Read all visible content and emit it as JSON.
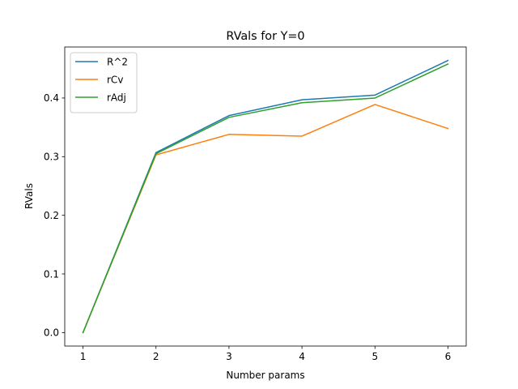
{
  "chart_data": {
    "type": "line",
    "title": "RVals for Y=0",
    "xlabel": "Number params",
    "ylabel": "RVals",
    "x": [
      1,
      2,
      3,
      4,
      5,
      6
    ],
    "xlim": [
      0.75,
      6.25
    ],
    "ylim": [
      -0.023,
      0.487
    ],
    "xticks": [
      "1",
      "2",
      "3",
      "4",
      "5",
      "6"
    ],
    "yticks": [
      "0.0",
      "0.1",
      "0.2",
      "0.3",
      "0.4"
    ],
    "grid": false,
    "legend_position": "upper-left",
    "series": [
      {
        "name": "R^2",
        "color": "#1f77b4",
        "values": [
          0.0,
          0.307,
          0.37,
          0.397,
          0.405,
          0.464
        ]
      },
      {
        "name": "rCv",
        "color": "#ff7f0e",
        "values": [
          0.0,
          0.303,
          0.338,
          0.335,
          0.389,
          0.348
        ]
      },
      {
        "name": "rAdj",
        "color": "#2ca02c",
        "values": [
          0.0,
          0.305,
          0.367,
          0.392,
          0.4,
          0.458
        ]
      }
    ]
  }
}
